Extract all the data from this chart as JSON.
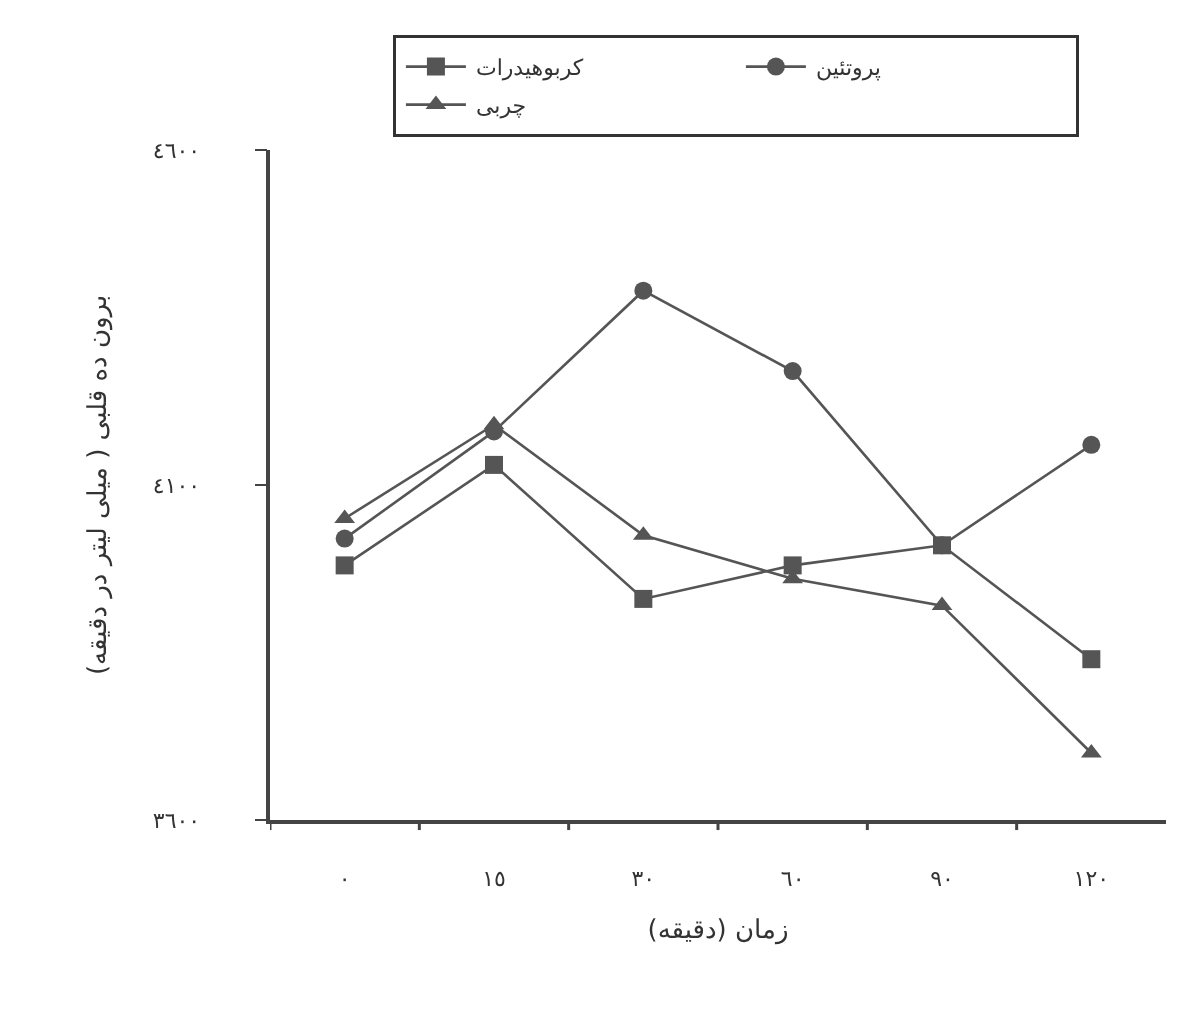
{
  "chart_data": {
    "type": "line",
    "xlabel": "زمان (دقیقه)",
    "ylabel": "برون ده قلبی ( میلی لیتر در دقیقه)",
    "categories": [
      "٠",
      "١٥",
      "٣٠",
      "٦٠",
      "٩٠",
      "١٢٠"
    ],
    "ylim": [
      3600,
      4600
    ],
    "yticks": [
      {
        "value": 3600,
        "label": "٣٦٠٠"
      },
      {
        "value": 4100,
        "label": "٤١٠٠"
      },
      {
        "value": 4600,
        "label": "٤٦٠٠"
      }
    ],
    "legend": "top",
    "line_style": "solid",
    "series": [
      {
        "name": "کربوهیدرات",
        "color": "#555555",
        "marker": "square",
        "values": [
          3980,
          4130,
          3930,
          3980,
          4010,
          3840
        ]
      },
      {
        "name": "پروتئین",
        "color": "#555555",
        "marker": "circle",
        "values": [
          4020,
          4180,
          4390,
          4270,
          4010,
          4160
        ]
      },
      {
        "name": "چربی",
        "color": "#555555",
        "marker": "triangle",
        "values": [
          4050,
          4190,
          4025,
          3960,
          3920,
          3700
        ]
      }
    ]
  }
}
